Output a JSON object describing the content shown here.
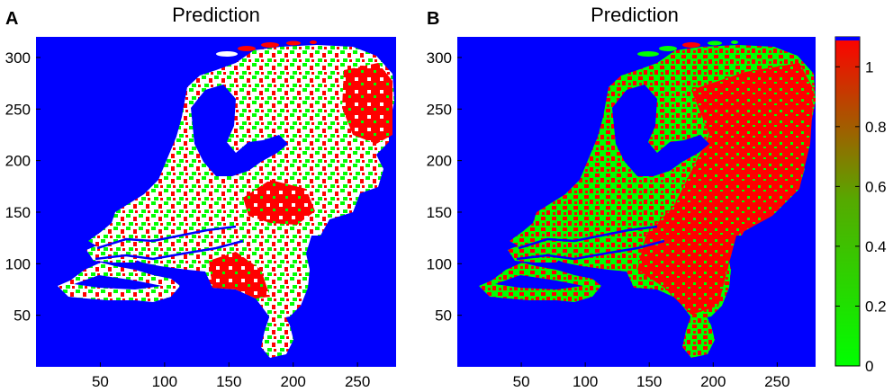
{
  "colors": {
    "water": "#0000ff",
    "high": "#ff0000",
    "low": "#00ff00",
    "mid_white": "#ffffff",
    "colorbar_top": "#ff0000",
    "colorbar_bottom": "#00ff00"
  },
  "chart_data": [
    {
      "type": "heatmap",
      "panel_label": "A",
      "title": "Prediction",
      "xlabel": "",
      "ylabel": "",
      "xlim": [
        0,
        280
      ],
      "ylim": [
        0,
        320
      ],
      "x_ticks": [
        50,
        100,
        150,
        200,
        250
      ],
      "y_ticks": [
        50,
        100,
        150,
        200,
        250,
        300
      ],
      "categories": [
        "water",
        "low",
        "uncertain",
        "high"
      ],
      "category_colors": [
        "#0000ff",
        "#00ff00",
        "#ffffff",
        "#ff0000"
      ]
    },
    {
      "type": "heatmap",
      "panel_label": "B",
      "title": "Prediction",
      "xlabel": "",
      "ylabel": "",
      "xlim": [
        0,
        280
      ],
      "ylim": [
        0,
        320
      ],
      "x_ticks": [
        50,
        100,
        150,
        200,
        250
      ],
      "y_ticks": [
        50,
        100,
        150,
        200,
        250,
        300
      ],
      "colorbar": {
        "range": [
          0,
          1.1
        ],
        "ticks": [
          0,
          0.2,
          0.4,
          0.6,
          0.8,
          1
        ],
        "tick_labels": [
          "0",
          "0.2",
          "0.4",
          "0.6",
          "0.8",
          "1"
        ]
      }
    }
  ]
}
